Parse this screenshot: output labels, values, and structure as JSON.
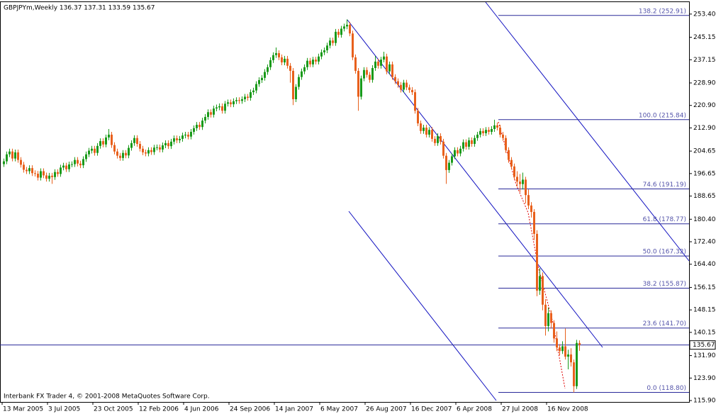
{
  "chart_data": {
    "type": "candlestick",
    "header": "GBPJPYm,Weekly  136.37 137.31 133.59 135.67",
    "footer": "Interbank FX Trader 4, © 2001-2008 MetaQuotes Software Corp.",
    "up_color": "#1a9a1a",
    "down_color": "#e8601c",
    "categories": [
      "13 Mar 2005",
      null,
      null,
      null,
      null,
      null,
      null,
      null,
      null,
      null,
      null,
      null,
      null,
      null,
      null,
      null,
      "3 Jul 2005",
      null,
      null,
      null,
      null,
      null,
      null,
      null,
      null,
      null,
      null,
      null,
      null,
      null,
      null,
      null,
      "23 Oct 2005",
      null,
      null,
      null,
      null,
      null,
      null,
      null,
      null,
      null,
      null,
      null,
      null,
      null,
      null,
      null,
      "12 Feb 2006",
      null,
      null,
      null,
      null,
      null,
      null,
      null,
      null,
      null,
      null,
      null,
      null,
      null,
      null,
      null,
      "4 Jun 2006",
      null,
      null,
      null,
      null,
      null,
      null,
      null,
      null,
      null,
      null,
      null,
      null,
      null,
      null,
      null,
      "24 Sep 2006",
      null,
      null,
      null,
      null,
      null,
      null,
      null,
      null,
      null,
      null,
      null,
      null,
      null,
      null,
      null,
      "14 Jan 2007",
      null,
      null,
      null,
      null,
      null,
      null,
      null,
      null,
      null,
      null,
      null,
      null,
      null,
      null,
      null,
      "6 May 2007",
      null,
      null,
      null,
      null,
      null,
      null,
      null,
      null,
      null,
      null,
      null,
      null,
      null,
      null,
      null,
      "26 Aug 2007",
      null,
      null,
      null,
      null,
      null,
      null,
      null,
      null,
      null,
      null,
      null,
      null,
      null,
      null,
      null,
      "16 Dec 2007",
      null,
      null,
      null,
      null,
      null,
      null,
      null,
      null,
      null,
      null,
      null,
      null,
      null,
      null,
      null,
      "6 Apr 2008",
      null,
      null,
      null,
      null,
      null,
      null,
      null,
      null,
      null,
      null,
      null,
      null,
      null,
      null,
      null,
      "27 Jul 2008",
      null,
      null,
      null,
      null,
      null,
      null,
      null,
      null,
      null,
      null,
      null,
      null,
      null,
      null,
      null,
      "16 Nov 2008",
      null,
      null,
      null,
      null,
      null,
      null,
      null,
      null,
      null,
      null,
      null
    ],
    "open": [
      200.0,
      201.0,
      203.5,
      204.5,
      202.0,
      204.2,
      201.5,
      199.8,
      198.0,
      197.5,
      198.6,
      196.8,
      196.6,
      195.2,
      197.5,
      196.0,
      194.8,
      195.9,
      195.4,
      197.2,
      196.5,
      198.8,
      199.5,
      198.2,
      199.9,
      200.0,
      201.5,
      200.2,
      199.6,
      201.8,
      203.5,
      204.8,
      205.5,
      204.0,
      206.5,
      208.2,
      207.0,
      209.5,
      210.5,
      206.8,
      204.5,
      203.0,
      202.2,
      204.0,
      203.1,
      205.8,
      207.5,
      209.3,
      207.2,
      205.5,
      204.2,
      203.8,
      205.0,
      204.3,
      205.9,
      206.0,
      205.2,
      206.7,
      207.5,
      206.4,
      208.0,
      209.2,
      208.5,
      209.0,
      210.2,
      210.5,
      209.8,
      211.5,
      212.8,
      214.0,
      213.2,
      215.5,
      216.8,
      218.5,
      217.6,
      219.8,
      220.2,
      220.6,
      219.0,
      221.5,
      222.0,
      221.3,
      222.4,
      222.8,
      222.5,
      223.1,
      224.0,
      223.6,
      225.6,
      226.2,
      228.5,
      229.9,
      230.7,
      232.8,
      234.5,
      237.0,
      238.8,
      239.5,
      238.0,
      236.2,
      237.5,
      235.0,
      233.2,
      223.1,
      227.5,
      231.0,
      233.0,
      234.5,
      236.8,
      235.5,
      237.2,
      236.5,
      238.3,
      239.8,
      240.5,
      242.2,
      244.0,
      243.1,
      247.1,
      246.0,
      248.2,
      249.0,
      249.6,
      246.5,
      238.0,
      233.2,
      224.0,
      230.5,
      233.5,
      231.8,
      230.0,
      234.2,
      236.5,
      235.0,
      237.2,
      238.3,
      233.0,
      235.5,
      231.0,
      229.5,
      228.2,
      226.5,
      229.0,
      227.3,
      226.4,
      225.6,
      219.0,
      214.5,
      211.8,
      213.0,
      210.5,
      212.2,
      209.0,
      207.5,
      210.0,
      208.0,
      203.0,
      197.9,
      200.5,
      202.8,
      205.0,
      203.8,
      205.5,
      207.8,
      206.2,
      208.5,
      207.2,
      209.3,
      210.5,
      211.8,
      211.0,
      212.2,
      211.5,
      212.5,
      213.8,
      213.0,
      210.5,
      209.3,
      205.0,
      201.5,
      199.2,
      195.5,
      193.8,
      192.9,
      194.5,
      189.0,
      185.3,
      183.0,
      175.2,
      155.0,
      160.2,
      150.0,
      142.4,
      147.0,
      143.5,
      138.0,
      134.8,
      133.5,
      135.2,
      131.5,
      132.3,
      129.5,
      121.0,
      136.37
    ],
    "high": [
      202.0,
      204.5,
      205.5,
      205.5,
      205.2,
      205.2,
      202.5,
      200.8,
      199.0,
      199.6,
      199.6,
      197.8,
      197.6,
      198.5,
      198.5,
      197.0,
      196.9,
      196.9,
      198.2,
      198.2,
      199.8,
      200.5,
      200.5,
      200.9,
      201.0,
      202.5,
      202.5,
      201.2,
      202.8,
      204.5,
      205.8,
      206.5,
      206.5,
      207.5,
      209.2,
      209.2,
      210.5,
      212.5,
      211.5,
      207.8,
      205.5,
      204.0,
      205.0,
      205.0,
      206.8,
      208.5,
      210.3,
      210.3,
      208.2,
      206.5,
      205.2,
      206.0,
      206.0,
      206.9,
      207.0,
      207.0,
      207.7,
      208.5,
      208.5,
      209.0,
      210.2,
      210.2,
      210.0,
      211.2,
      211.5,
      211.5,
      212.5,
      213.8,
      215.0,
      215.0,
      216.5,
      217.8,
      219.5,
      219.5,
      220.8,
      221.2,
      221.6,
      221.6,
      222.5,
      223.0,
      223.0,
      223.4,
      223.8,
      223.8,
      224.1,
      225.0,
      225.0,
      226.6,
      227.2,
      229.5,
      230.9,
      231.7,
      233.8,
      235.5,
      238.0,
      239.8,
      241.5,
      240.5,
      239.0,
      238.5,
      238.5,
      236.0,
      234.2,
      228.5,
      232.0,
      234.0,
      235.5,
      237.8,
      237.8,
      238.2,
      238.2,
      239.3,
      240.8,
      241.5,
      243.2,
      245.0,
      245.0,
      248.1,
      248.1,
      249.2,
      250.0,
      251.5,
      250.6,
      247.5,
      239.0,
      234.2,
      231.5,
      234.5,
      234.5,
      232.8,
      235.2,
      238.5,
      237.5,
      238.2,
      240.0,
      239.3,
      236.5,
      236.5,
      232.0,
      230.5,
      229.2,
      230.0,
      230.0,
      228.3,
      227.4,
      226.6,
      220.0,
      215.5,
      214.0,
      214.0,
      213.2,
      213.2,
      210.0,
      211.0,
      211.0,
      209.0,
      204.0,
      201.5,
      203.8,
      206.0,
      206.0,
      206.5,
      208.8,
      208.8,
      209.5,
      209.5,
      210.3,
      211.5,
      212.8,
      212.8,
      213.2,
      213.2,
      213.5,
      215.8,
      214.8,
      214.0,
      211.5,
      210.3,
      206.0,
      202.5,
      200.2,
      197.5,
      196.5,
      197.0,
      195.5,
      191.0,
      186.5,
      184.0,
      176.5,
      163.0,
      161.5,
      152.0,
      149.0,
      148.0,
      144.5,
      140.5,
      136.0,
      137.0,
      141.5,
      134.0,
      134.5,
      130.5,
      137.5,
      137.31
    ],
    "low": [
      199.0,
      200.0,
      202.5,
      201.0,
      201.0,
      200.5,
      198.8,
      197.0,
      196.5,
      196.5,
      195.8,
      195.6,
      194.2,
      194.2,
      195.0,
      193.8,
      193.8,
      193.0,
      194.4,
      195.5,
      195.5,
      197.8,
      197.2,
      197.2,
      198.9,
      199.0,
      199.2,
      198.6,
      198.6,
      200.8,
      202.5,
      203.8,
      203.0,
      203.0,
      205.5,
      206.0,
      206.0,
      208.5,
      205.8,
      203.5,
      202.0,
      201.2,
      201.2,
      202.1,
      202.1,
      204.8,
      206.5,
      206.2,
      204.5,
      203.2,
      202.8,
      202.8,
      203.3,
      203.3,
      204.9,
      204.2,
      204.2,
      205.7,
      205.4,
      205.4,
      207.0,
      207.5,
      207.5,
      208.0,
      209.2,
      208.8,
      208.8,
      210.5,
      211.8,
      212.2,
      212.2,
      214.5,
      215.8,
      216.6,
      216.6,
      218.8,
      219.2,
      218.0,
      218.0,
      220.5,
      220.3,
      220.3,
      221.4,
      221.5,
      221.5,
      222.1,
      222.6,
      222.6,
      224.6,
      225.2,
      227.5,
      228.9,
      229.7,
      231.8,
      233.5,
      236.0,
      237.8,
      237.0,
      235.2,
      235.2,
      234.0,
      229.0,
      221.0,
      222.1,
      226.5,
      230.0,
      232.0,
      233.5,
      234.5,
      234.5,
      235.5,
      235.5,
      237.3,
      238.8,
      239.5,
      241.2,
      242.1,
      242.1,
      245.0,
      245.0,
      247.2,
      248.0,
      245.5,
      237.0,
      232.2,
      219.0,
      223.0,
      229.5,
      230.8,
      229.0,
      229.0,
      233.2,
      234.0,
      234.0,
      236.2,
      232.0,
      232.0,
      230.0,
      228.5,
      227.2,
      225.5,
      225.5,
      226.3,
      225.4,
      224.6,
      218.0,
      213.5,
      210.8,
      210.8,
      209.5,
      209.5,
      208.0,
      206.5,
      206.5,
      207.0,
      202.0,
      193.0,
      196.9,
      199.5,
      201.8,
      202.8,
      202.8,
      204.5,
      205.2,
      205.2,
      206.2,
      206.2,
      208.3,
      209.5,
      210.0,
      210.0,
      210.5,
      210.5,
      211.5,
      212.0,
      209.5,
      208.3,
      204.0,
      200.5,
      198.2,
      194.5,
      192.0,
      190.0,
      191.0,
      186.0,
      184.0,
      181.0,
      173.0,
      153.0,
      153.5,
      148.0,
      139.0,
      140.5,
      141.5,
      136.5,
      133.5,
      132.0,
      132.5,
      130.5,
      127.0,
      128.0,
      118.8,
      120.0,
      133.59
    ],
    "close": [
      201.0,
      203.5,
      204.5,
      202.0,
      204.2,
      201.5,
      199.8,
      198.0,
      197.5,
      198.6,
      196.8,
      196.6,
      195.2,
      197.5,
      196.0,
      194.8,
      195.9,
      195.4,
      197.2,
      196.5,
      198.8,
      199.5,
      198.2,
      199.9,
      200.0,
      201.5,
      200.2,
      199.6,
      201.8,
      203.5,
      204.8,
      205.5,
      204.0,
      206.5,
      208.2,
      207.0,
      209.5,
      210.5,
      206.8,
      204.5,
      203.0,
      202.2,
      204.0,
      203.1,
      205.8,
      207.5,
      209.3,
      207.2,
      205.5,
      204.2,
      203.8,
      205.0,
      204.3,
      205.9,
      206.0,
      205.2,
      206.7,
      207.5,
      206.4,
      208.0,
      209.2,
      208.5,
      209.0,
      210.2,
      210.5,
      209.8,
      211.5,
      212.8,
      214.0,
      213.2,
      215.5,
      216.8,
      218.5,
      217.6,
      219.8,
      220.2,
      220.6,
      219.0,
      221.5,
      222.0,
      221.3,
      222.4,
      222.8,
      222.5,
      223.1,
      224.0,
      223.6,
      225.6,
      226.2,
      228.5,
      229.9,
      230.7,
      232.8,
      234.5,
      237.0,
      238.8,
      239.5,
      238.0,
      236.2,
      237.5,
      235.0,
      233.2,
      223.1,
      227.5,
      231.0,
      233.0,
      234.5,
      236.8,
      235.5,
      237.2,
      236.5,
      238.3,
      239.8,
      240.5,
      242.2,
      244.0,
      243.1,
      247.1,
      246.0,
      248.2,
      249.0,
      249.6,
      246.5,
      238.0,
      233.2,
      224.0,
      230.5,
      233.5,
      231.8,
      230.0,
      234.2,
      236.5,
      235.0,
      237.2,
      238.3,
      233.0,
      235.5,
      231.0,
      229.5,
      228.2,
      226.5,
      229.0,
      227.3,
      226.4,
      225.6,
      219.0,
      214.5,
      211.8,
      213.0,
      210.5,
      212.2,
      209.0,
      207.5,
      210.0,
      208.0,
      203.0,
      197.9,
      200.5,
      202.8,
      205.0,
      203.8,
      205.5,
      207.8,
      206.2,
      208.5,
      207.2,
      209.3,
      210.5,
      211.8,
      211.0,
      212.2,
      211.5,
      212.5,
      213.8,
      213.0,
      210.5,
      209.3,
      205.0,
      201.5,
      199.2,
      195.5,
      193.8,
      192.9,
      194.5,
      189.0,
      185.3,
      183.0,
      175.2,
      155.0,
      160.2,
      150.0,
      142.4,
      147.0,
      143.5,
      138.0,
      134.8,
      133.5,
      135.2,
      131.5,
      132.3,
      129.5,
      121.0,
      136.4,
      135.67
    ],
    "ylim": [
      115.4,
      257.9
    ],
    "yticks": [
      {
        "value": 253.4,
        "label": "253.40"
      },
      245.15,
      237.15,
      {
        "value": 228.9,
        "label": "228.90"
      },
      {
        "value": 220.9,
        "label": "220.90"
      },
      {
        "value": 212.9,
        "label": "212.90"
      },
      204.65,
      196.65,
      188.65,
      {
        "value": 180.4,
        "label": "180.40"
      },
      {
        "value": 172.4,
        "label": "172.40"
      },
      {
        "value": 164.4,
        "label": "164.40"
      },
      156.15,
      148.15,
      140.15,
      {
        "value": 131.9,
        "label": "131.90"
      },
      {
        "value": 123.9,
        "label": "123.90"
      },
      {
        "value": 115.9,
        "label": "115.90"
      }
    ],
    "last_price": 135.67,
    "fib_levels": [
      {
        "label": "138.2 (252.91)",
        "price": 252.91
      },
      {
        "label": "100.0 (215.84)",
        "price": 215.84
      },
      {
        "label": "74.6 (191.19)",
        "price": 191.19
      },
      {
        "label": "61.8 (178.77)",
        "price": 178.77
      },
      {
        "label": "50.0 (167.32)",
        "price": 167.32
      },
      {
        "label": "38.2 (155.87)",
        "price": 155.87
      },
      {
        "label": "23.6 (141.70)",
        "price": 141.7
      },
      {
        "label": "0.0 (118.80)",
        "price": 118.8
      }
    ]
  }
}
